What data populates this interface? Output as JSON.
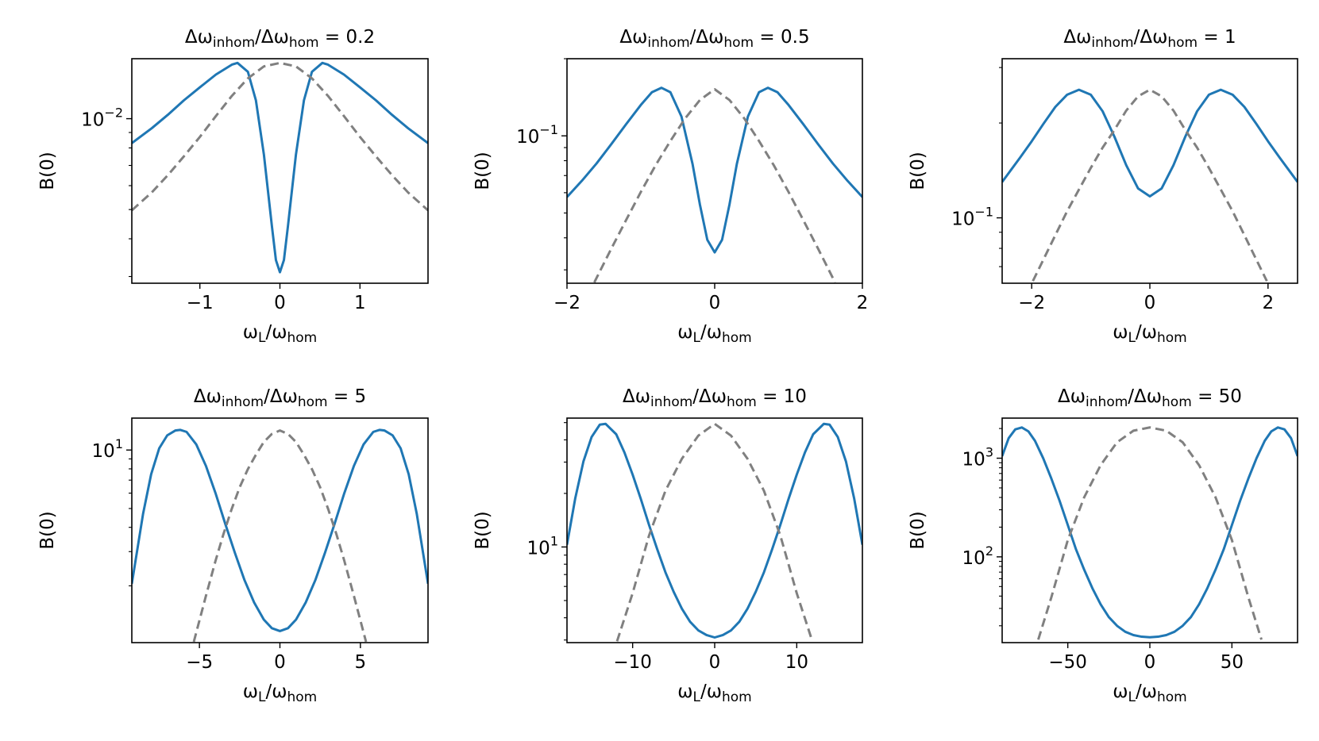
{
  "figure": {
    "colors": {
      "solid": "#1f77b4",
      "dashed": "#808080",
      "axes": "#000000"
    },
    "chart_data": [
      {
        "type": "line",
        "title": {
          "prefix": "Δω",
          "sub1": "inhom",
          "mid": "/Δω",
          "sub2": "hom",
          "value": " = 0.2"
        },
        "ratio": 0.2,
        "xlabel": {
          "main": "ω",
          "sub1": "L",
          "mid": "/ω",
          "sub2": "hom"
        },
        "ylabel": "B(0)",
        "yscale": "log",
        "xlim": [
          -1.85,
          1.85
        ],
        "ylim": [
          0.00285,
          0.0158
        ],
        "xticks": [
          {
            "value": -1,
            "label": "−1"
          },
          {
            "value": 0,
            "label": "0"
          },
          {
            "value": 1,
            "label": "1"
          }
        ],
        "yticks": [
          {
            "value": 0.01,
            "base": "10",
            "exp": "−2"
          }
        ],
        "series": [
          {
            "style": "solid",
            "x": [
              -1.85,
              -1.6,
              -1.4,
              -1.2,
              -1.0,
              -0.8,
              -0.6,
              -0.53,
              -0.4,
              -0.3,
              -0.2,
              -0.1,
              -0.05,
              0,
              0.05,
              0.1,
              0.2,
              0.3,
              0.4,
              0.53,
              0.6,
              0.8,
              1.0,
              1.2,
              1.4,
              1.6,
              1.85
            ],
            "y": [
              0.0083,
              0.0093,
              0.0103,
              0.0115,
              0.0127,
              0.014,
              0.0151,
              0.0153,
              0.0143,
              0.0115,
              0.0076,
              0.0044,
              0.0034,
              0.0031,
              0.0034,
              0.0044,
              0.0076,
              0.0115,
              0.0143,
              0.0153,
              0.0151,
              0.014,
              0.0127,
              0.0115,
              0.0103,
              0.0093,
              0.0083
            ]
          },
          {
            "style": "dashed",
            "x": [
              -1.85,
              -1.6,
              -1.4,
              -1.2,
              -1.0,
              -0.8,
              -0.6,
              -0.4,
              -0.2,
              0,
              0.2,
              0.4,
              0.6,
              0.8,
              1.0,
              1.2,
              1.4,
              1.6,
              1.85
            ],
            "y": [
              0.00497,
              0.0057,
              0.0065,
              0.0075,
              0.0087,
              0.0102,
              0.0119,
              0.0136,
              0.0149,
              0.0153,
              0.0149,
              0.0136,
              0.0119,
              0.0102,
              0.0087,
              0.0075,
              0.0065,
              0.0057,
              0.00497
            ]
          }
        ]
      },
      {
        "type": "line",
        "title": {
          "prefix": "Δω",
          "sub1": "inhom",
          "mid": "/Δω",
          "sub2": "hom",
          "value": " = 0.5"
        },
        "ratio": 0.5,
        "xlabel": {
          "main": "ω",
          "sub1": "L",
          "mid": "/ω",
          "sub2": "hom"
        },
        "ylabel": "B(0)",
        "yscale": "log",
        "xlim": [
          -2.0,
          2.0
        ],
        "ylim": [
          0.0266,
          0.2
        ],
        "xticks": [
          {
            "value": -2,
            "label": "−2"
          },
          {
            "value": 0,
            "label": "0"
          },
          {
            "value": 2,
            "label": "2"
          }
        ],
        "yticks": [
          {
            "value": 0.1,
            "base": "10",
            "exp": "−1"
          }
        ],
        "series": [
          {
            "style": "solid",
            "x": [
              -2.0,
              -1.8,
              -1.6,
              -1.4,
              -1.2,
              -1.0,
              -0.85,
              -0.72,
              -0.6,
              -0.45,
              -0.3,
              -0.2,
              -0.1,
              0,
              0.1,
              0.2,
              0.3,
              0.45,
              0.6,
              0.72,
              0.85,
              1.0,
              1.2,
              1.4,
              1.6,
              1.8,
              2.0
            ],
            "y": [
              0.0577,
              0.0667,
              0.078,
              0.0928,
              0.111,
              0.132,
              0.148,
              0.154,
              0.148,
              0.119,
              0.0777,
              0.0539,
              0.0393,
              0.0351,
              0.0393,
              0.0539,
              0.0777,
              0.119,
              0.148,
              0.154,
              0.148,
              0.132,
              0.111,
              0.0928,
              0.078,
              0.0667,
              0.0577
            ]
          },
          {
            "style": "dashed",
            "x": [
              -1.63,
              -1.4,
              -1.2,
              -1.0,
              -0.8,
              -0.6,
              -0.4,
              -0.2,
              0,
              0.2,
              0.4,
              0.6,
              0.8,
              1.0,
              1.2,
              1.4,
              1.63
            ],
            "y": [
              0.0268,
              0.0363,
              0.0469,
              0.0604,
              0.0768,
              0.0955,
              0.117,
              0.138,
              0.152,
              0.138,
              0.117,
              0.0955,
              0.0768,
              0.0604,
              0.0469,
              0.0363,
              0.0268
            ]
          }
        ]
      },
      {
        "type": "line",
        "title": {
          "prefix": "Δω",
          "sub1": "inhom",
          "mid": "/Δω",
          "sub2": "hom",
          "value": " = 1"
        },
        "ratio": 1,
        "xlabel": {
          "main": "ω",
          "sub1": "L",
          "mid": "/ω",
          "sub2": "hom"
        },
        "ylabel": "B(0)",
        "yscale": "log",
        "xlim": [
          -2.5,
          2.5
        ],
        "ylim": [
          0.062,
          0.32
        ],
        "xticks": [
          {
            "value": -2,
            "label": "−2"
          },
          {
            "value": 0,
            "label": "0"
          },
          {
            "value": 2,
            "label": "2"
          }
        ],
        "yticks": [
          {
            "value": 0.1,
            "base": "10",
            "exp": "−1"
          }
        ],
        "series": [
          {
            "style": "solid",
            "x": [
              -2.5,
              -2.2,
              -2.0,
              -1.8,
              -1.6,
              -1.4,
              -1.2,
              -1.0,
              -0.8,
              -0.6,
              -0.4,
              -0.2,
              0,
              0.2,
              0.4,
              0.6,
              0.8,
              1.0,
              1.2,
              1.4,
              1.6,
              1.8,
              2.0,
              2.2,
              2.5
            ],
            "y": [
              0.13,
              0.155,
              0.175,
              0.199,
              0.225,
              0.246,
              0.255,
              0.246,
              0.218,
              0.181,
              0.147,
              0.124,
              0.117,
              0.124,
              0.147,
              0.181,
              0.218,
              0.246,
              0.255,
              0.246,
              0.225,
              0.199,
              0.175,
              0.155,
              0.13
            ]
          },
          {
            "style": "dashed",
            "x": [
              -1.98,
              -1.8,
              -1.6,
              -1.4,
              -1.2,
              -1.0,
              -0.8,
              -0.6,
              -0.4,
              -0.2,
              0,
              0.2,
              0.4,
              0.6,
              0.8,
              1.0,
              1.2,
              1.4,
              1.6,
              1.8,
              1.98
            ],
            "y": [
              0.063,
              0.0738,
              0.0881,
              0.105,
              0.123,
              0.144,
              0.167,
              0.19,
              0.219,
              0.243,
              0.255,
              0.243,
              0.219,
              0.19,
              0.167,
              0.144,
              0.123,
              0.105,
              0.0881,
              0.0738,
              0.063
            ]
          }
        ]
      },
      {
        "type": "line",
        "title": {
          "prefix": "Δω",
          "sub1": "inhom",
          "mid": "/Δω",
          "sub2": "hom",
          "value": " = 5"
        },
        "ratio": 5,
        "xlabel": {
          "main": "ω",
          "sub1": "L",
          "mid": "/ω",
          "sub2": "hom"
        },
        "ylabel": "B(0)",
        "yscale": "log",
        "xlim": [
          -9.2,
          9.2
        ],
        "ylim": [
          1.02,
          14.6
        ],
        "xticks": [
          {
            "value": -5,
            "label": "−5"
          },
          {
            "value": 0,
            "label": "0"
          },
          {
            "value": 5,
            "label": "5"
          }
        ],
        "yticks": [
          {
            "value": 10,
            "base": "10",
            "exp": "1"
          }
        ],
        "series": [
          {
            "style": "solid",
            "x": [
              -9.2,
              -8.5,
              -8.0,
              -7.5,
              -7.0,
              -6.5,
              -6.2,
              -5.8,
              -5.2,
              -4.6,
              -4.0,
              -3.4,
              -2.8,
              -2.2,
              -1.6,
              -1.0,
              -0.5,
              0,
              0.5,
              1.0,
              1.6,
              2.2,
              2.8,
              3.4,
              4.0,
              4.6,
              5.2,
              5.8,
              6.2,
              6.5,
              7.0,
              7.5,
              8.0,
              8.5,
              9.2
            ],
            "y": [
              2.05,
              4.7,
              7.5,
              10.2,
              11.9,
              12.6,
              12.7,
              12.4,
              10.7,
              8.3,
              6.0,
              4.18,
              2.96,
              2.14,
              1.64,
              1.34,
              1.21,
              1.17,
              1.21,
              1.34,
              1.64,
              2.14,
              2.96,
              4.18,
              6.0,
              8.3,
              10.7,
              12.4,
              12.7,
              12.6,
              11.9,
              10.2,
              7.5,
              4.7,
              2.05
            ]
          },
          {
            "style": "dashed",
            "x": [
              -5.35,
              -4.6,
              -4.0,
              -3.5,
              -3.0,
              -2.5,
              -2.0,
              -1.5,
              -1.0,
              -0.5,
              0,
              0.5,
              1.0,
              1.5,
              2.0,
              2.5,
              3.0,
              3.5,
              4.0,
              4.6,
              5.35
            ],
            "y": [
              1.03,
              1.77,
              2.69,
              3.71,
              4.96,
              6.43,
              7.94,
              9.43,
              11.0,
              12.1,
              12.6,
              12.1,
              11.0,
              9.43,
              7.94,
              6.43,
              4.96,
              3.71,
              2.69,
              1.77,
              1.03
            ]
          }
        ]
      },
      {
        "type": "line",
        "title": {
          "prefix": "Δω",
          "sub1": "inhom",
          "mid": "/Δω",
          "sub2": "hom",
          "value": " = 10"
        },
        "ratio": 10,
        "xlabel": {
          "main": "ω",
          "sub1": "L",
          "mid": "/ω",
          "sub2": "hom"
        },
        "ylabel": "B(0)",
        "yscale": "log",
        "xlim": [
          -18.0,
          18.0
        ],
        "ylim": [
          2.9,
          53
        ],
        "xticks": [
          {
            "value": -10,
            "label": "−10"
          },
          {
            "value": 0,
            "label": "0"
          },
          {
            "value": 10,
            "label": "10"
          }
        ],
        "yticks": [
          {
            "value": 10,
            "base": "10",
            "exp": "1"
          }
        ],
        "series": [
          {
            "style": "solid",
            "x": [
              -18.0,
              -17.0,
              -16.0,
              -15.0,
              -14.0,
              -13.3,
              -12.0,
              -11.0,
              -10.0,
              -9.0,
              -8.0,
              -7.0,
              -6.0,
              -5.0,
              -4.0,
              -3.0,
              -2.0,
              -1.0,
              0,
              1.0,
              2.0,
              3.0,
              4.0,
              5.0,
              6.0,
              7.0,
              8.0,
              9.0,
              10.0,
              11.0,
              12.0,
              13.3,
              14.0,
              15.0,
              16.0,
              17.0,
              18.0
            ],
            "y": [
              10.3,
              18.7,
              30.2,
              41.5,
              48.7,
              49.2,
              43.0,
              34.0,
              25.5,
              18.6,
              13.3,
              9.7,
              7.2,
              5.6,
              4.5,
              3.8,
              3.4,
              3.2,
              3.1,
              3.2,
              3.4,
              3.8,
              4.5,
              5.6,
              7.2,
              9.7,
              13.3,
              18.6,
              25.5,
              34.0,
              43.0,
              49.2,
              48.7,
              41.5,
              30.2,
              18.7,
              10.3
            ]
          },
          {
            "style": "dashed",
            "x": [
              -11.9,
              -10.0,
              -8.0,
              -6.0,
              -4.0,
              -2.0,
              0,
              2.0,
              4.0,
              6.0,
              8.0,
              10.0,
              11.9
            ],
            "y": [
              2.95,
              5.5,
              11.6,
              20.7,
              31.3,
              42.2,
              49.2,
              42.2,
              31.3,
              20.7,
              11.6,
              5.5,
              2.95
            ]
          }
        ]
      },
      {
        "type": "line",
        "title": {
          "prefix": "Δω",
          "sub1": "inhom",
          "mid": "/Δω",
          "sub2": "hom",
          "value": " = 50"
        },
        "ratio": 50,
        "xlabel": {
          "main": "ω",
          "sub1": "L",
          "mid": "/ω",
          "sub2": "hom"
        },
        "ylabel": "B(0)",
        "yscale": "log",
        "xlim": [
          -90.0,
          90.0
        ],
        "ylim": [
          13.5,
          2550
        ],
        "xticks": [
          {
            "value": -50,
            "label": "−50"
          },
          {
            "value": 0,
            "label": "0"
          },
          {
            "value": 50,
            "label": "50"
          }
        ],
        "yticks": [
          {
            "value": 100,
            "base": "10",
            "exp": "2"
          },
          {
            "value": 1000,
            "base": "10",
            "exp": "3"
          }
        ],
        "series": [
          {
            "style": "solid",
            "x": [
              -90.0,
              -86.0,
              -82.0,
              -78.0,
              -74.0,
              -70.0,
              -65.0,
              -60.0,
              -55.0,
              -50.0,
              -45.0,
              -40.0,
              -35.0,
              -30.0,
              -25.0,
              -20.0,
              -15.0,
              -10.0,
              -5.0,
              0,
              5.0,
              10.0,
              15.0,
              20.0,
              25.0,
              30.0,
              35.0,
              40.0,
              45.0,
              50.0,
              55.0,
              60.0,
              65.0,
              70.0,
              74.0,
              78.0,
              82.0,
              86.0,
              90.0
            ],
            "y": [
              1050,
              1600,
              1960,
              2050,
              1870,
              1500,
              1000,
              620,
              370,
              210,
              119,
              74,
              48,
              33,
              24.5,
              20,
              17.4,
              16.1,
              15.5,
              15.3,
              15.5,
              16.1,
              17.4,
              20,
              24.5,
              33,
              48,
              74,
              119,
              210,
              370,
              620,
              1000,
              1500,
              1870,
              2050,
              1960,
              1600,
              1050
            ]
          },
          {
            "style": "dashed",
            "x": [
              -68.0,
              -60.0,
              -50.0,
              -40.0,
              -30.0,
              -20.0,
              -10.0,
              0,
              10.0,
              20.0,
              30.0,
              40.0,
              50.0,
              60.0,
              68.0
            ],
            "y": [
              14.5,
              39,
              148,
              402,
              850,
              1450,
              1900,
              2050,
              1900,
              1450,
              850,
              402,
              148,
              39,
              14.5
            ]
          }
        ]
      }
    ]
  }
}
